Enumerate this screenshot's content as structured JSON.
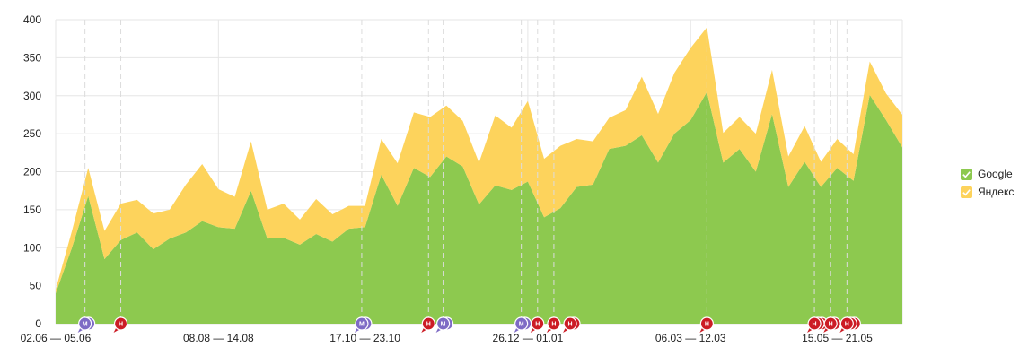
{
  "chart_data": {
    "type": "area",
    "stacked": true,
    "ylim": [
      0,
      400
    ],
    "yticks": [
      "0",
      "50",
      "100",
      "150",
      "200",
      "250",
      "300",
      "350",
      "400"
    ],
    "xlabels": [
      "02.06 — 05.06",
      "08.08 — 14.08",
      "17.10 — 23.10",
      "26.12 — 01.01",
      "06.03 — 12.03",
      "15.05 — 21.05"
    ],
    "xlabel_index": [
      0,
      10,
      19,
      29,
      39,
      48
    ],
    "grid": true,
    "legend_position": "right",
    "series": [
      {
        "name": "Google",
        "color": "#8dc94f",
        "values": [
          40,
          100,
          168,
          85,
          110,
          120,
          98,
          112,
          120,
          135,
          127,
          125,
          175,
          112,
          113,
          104,
          118,
          108,
          125,
          127,
          196,
          155,
          205,
          193,
          220,
          207,
          157,
          182,
          176,
          187,
          140,
          152,
          180,
          183,
          230,
          234,
          248,
          212,
          250,
          268,
          305,
          212,
          230,
          200,
          276,
          180,
          213,
          180,
          205,
          188,
          301,
          268,
          232
        ]
      },
      {
        "name": "Яндекс",
        "color": "#fdd35c",
        "values": [
          5,
          22,
          37,
          37,
          48,
          43,
          47,
          38,
          63,
          75,
          50,
          42,
          65,
          38,
          45,
          33,
          46,
          36,
          30,
          28,
          47,
          56,
          73,
          79,
          67,
          60,
          55,
          92,
          82,
          106,
          77,
          82,
          63,
          57,
          41,
          47,
          77,
          64,
          80,
          95,
          85,
          39,
          42,
          50,
          58,
          40,
          47,
          33,
          38,
          35,
          44,
          35,
          43
        ]
      }
    ],
    "markers": [
      {
        "index": 1.8,
        "type": "M",
        "stack": 2,
        "color": "#7e6bc5"
      },
      {
        "index": 4.0,
        "type": "H",
        "stack": 1,
        "color": "#cc1c25"
      },
      {
        "index": 18.8,
        "type": "M",
        "stack": 2,
        "color": "#7e6bc5"
      },
      {
        "index": 22.9,
        "type": "H",
        "stack": 1,
        "color": "#cc1c25"
      },
      {
        "index": 23.8,
        "type": "M",
        "stack": 2,
        "color": "#7e6bc5"
      },
      {
        "index": 28.6,
        "type": "M",
        "stack": 2,
        "color": "#7e6bc5"
      },
      {
        "index": 29.6,
        "type": "H",
        "stack": 1,
        "color": "#cc1c25"
      },
      {
        "index": 30.6,
        "type": "H",
        "stack": 1,
        "color": "#cc1c25"
      },
      {
        "index": 31.6,
        "type": "H",
        "stack": 2,
        "color": "#cc1c25"
      },
      {
        "index": 40.0,
        "type": "H",
        "stack": 1,
        "color": "#cc1c25"
      },
      {
        "index": 46.6,
        "type": "H",
        "stack": 3,
        "color": "#cc1c25"
      },
      {
        "index": 47.6,
        "type": "H",
        "stack": 2,
        "color": "#cc1c25"
      },
      {
        "index": 48.6,
        "type": "H",
        "stack": 3,
        "color": "#cc1c25"
      }
    ],
    "event_lines": [
      1.8,
      4.0,
      18.8,
      22.9,
      23.8,
      28.6,
      29.6,
      30.6,
      40.0,
      46.6,
      47.6,
      48.6
    ]
  },
  "legend": {
    "items": [
      {
        "label": "Google",
        "color": "#8dc94f"
      },
      {
        "label": "Яндекс",
        "color": "#fdd35c"
      }
    ]
  }
}
